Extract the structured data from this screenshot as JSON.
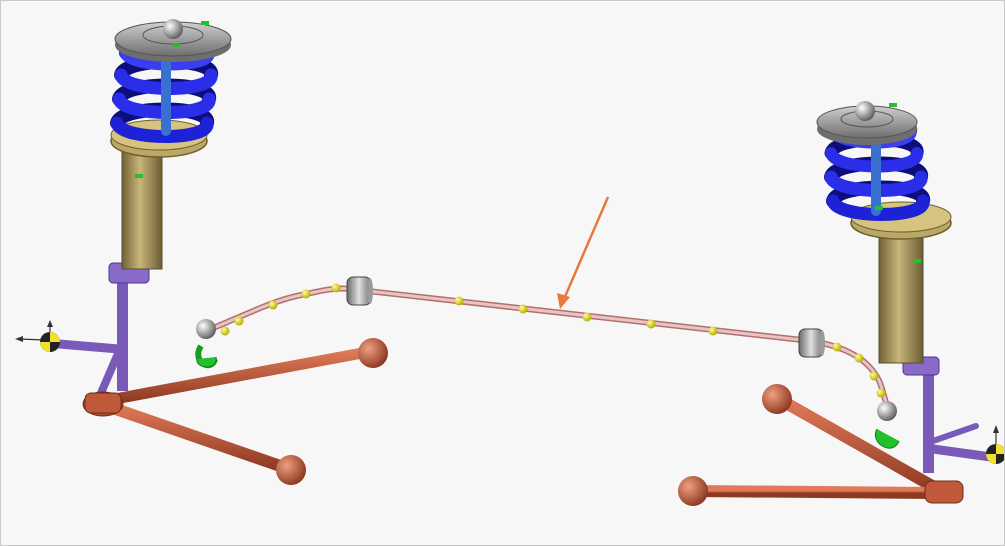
{
  "viewport": {
    "background": "#f7f7f7",
    "border": "#c8c8c8"
  },
  "colors": {
    "spring": "#1e22d6",
    "spring_dark": "#0c0f7a",
    "strut_body": "#a8945a",
    "strut_seat": "#bba766",
    "mount_plate": "#8e8e8e",
    "control_arm": "#c0583a",
    "knuckle": "#7a5ab8",
    "stabilizer_bar": "#d9a6a4",
    "bar_points": "#e8e020",
    "bushing": "#9a9a9a",
    "green_markers": "#22c02a",
    "annotation_arrow": "#e57a3c"
  },
  "scene": {
    "components": [
      {
        "name": "left-strut-assembly"
      },
      {
        "name": "right-strut-assembly"
      },
      {
        "name": "left-lower-control-arm"
      },
      {
        "name": "right-lower-control-arm"
      },
      {
        "name": "stabilizer-bar"
      },
      {
        "name": "left-bushing"
      },
      {
        "name": "right-bushing"
      },
      {
        "name": "left-compass-manipulator"
      },
      {
        "name": "right-compass-manipulator"
      }
    ],
    "annotation": {
      "type": "arrow",
      "points_to": "stabilizer-bar"
    }
  }
}
